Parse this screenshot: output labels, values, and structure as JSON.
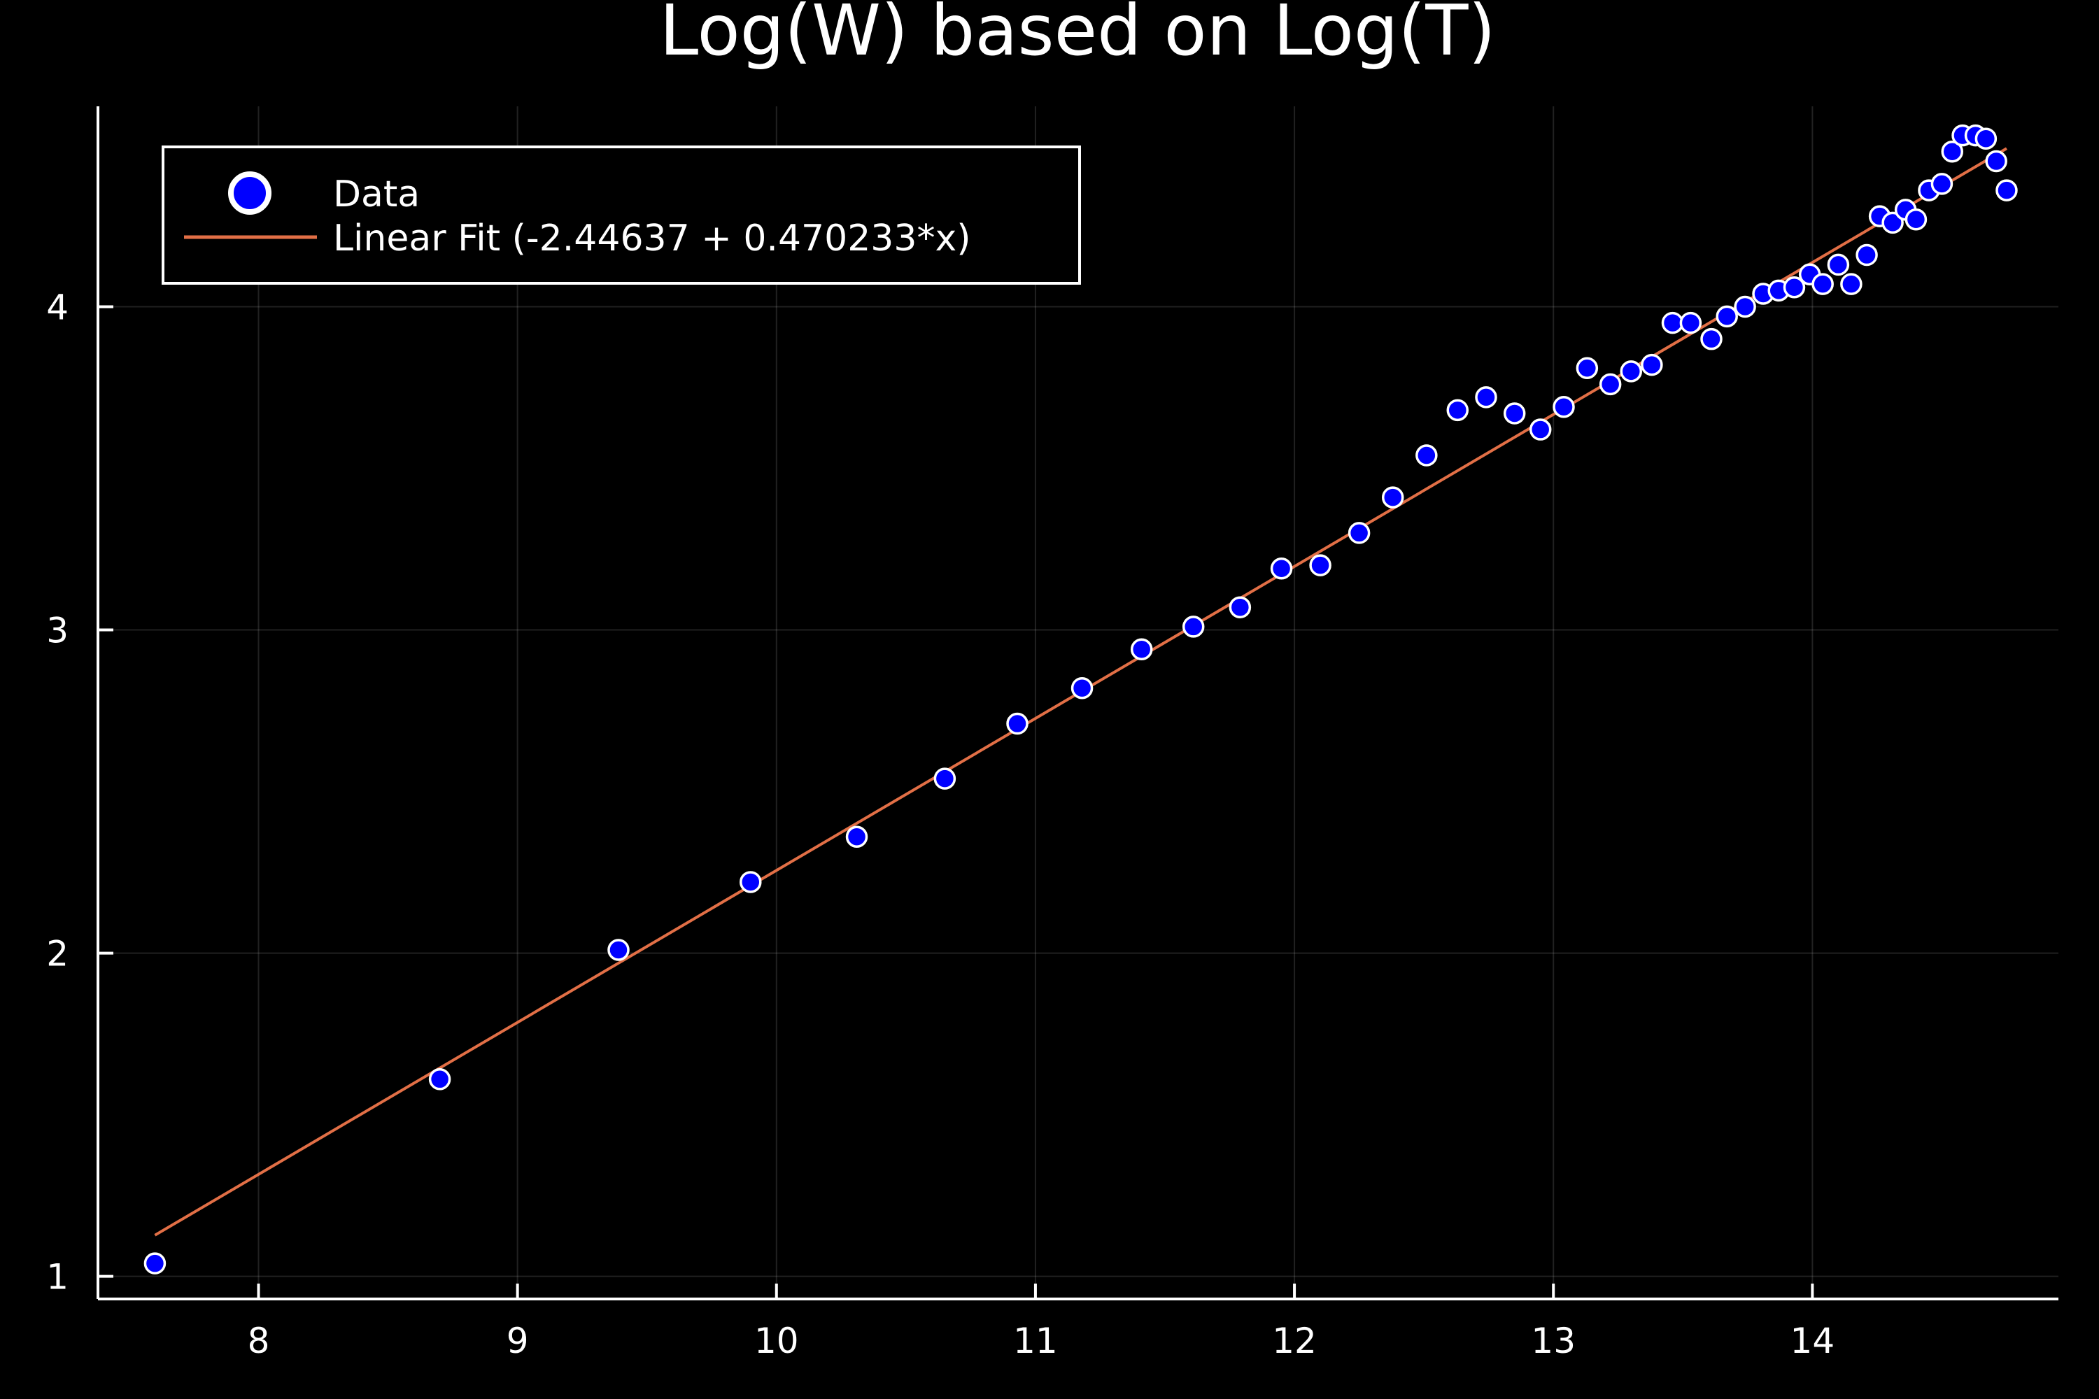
{
  "colors": {
    "background": "#000000",
    "foreground": "#ffffff",
    "data_points": "#0000ff",
    "data_point_outline": "#ffffff",
    "fit_line": "#e26f46"
  },
  "chart_data": {
    "type": "scatter",
    "title": "Log(W) based on Log(T)",
    "xlabel": "",
    "ylabel": "",
    "xlim": [
      7.38,
      14.95
    ],
    "ylim": [
      0.93,
      4.62
    ],
    "xticks": [
      8,
      9,
      10,
      11,
      12,
      13,
      14
    ],
    "yticks": [
      1,
      2,
      3,
      4
    ],
    "grid": true,
    "legend_position": "top-left",
    "series": [
      {
        "name": "Data",
        "kind": "scatter",
        "x": [
          7.6,
          8.7,
          9.39,
          9.9,
          10.31,
          10.65,
          10.93,
          11.18,
          11.41,
          11.61,
          11.79,
          11.95,
          12.1,
          12.25,
          12.38,
          12.51,
          12.63,
          12.74,
          12.85,
          12.95,
          13.04,
          13.13,
          13.22,
          13.3,
          13.38,
          13.46,
          13.53,
          13.61,
          13.67,
          13.74,
          13.81,
          13.87,
          13.93,
          13.99,
          14.04,
          14.1,
          14.15,
          14.21,
          14.26,
          14.31,
          14.36,
          14.4,
          14.45,
          14.5,
          14.54,
          14.58,
          14.63,
          14.67,
          14.71,
          14.75
        ],
        "y": [
          1.04,
          1.61,
          2.01,
          2.22,
          2.36,
          2.54,
          2.71,
          2.82,
          2.94,
          3.01,
          3.07,
          3.19,
          3.2,
          3.3,
          3.41,
          3.54,
          3.68,
          3.72,
          3.67,
          3.62,
          3.69,
          3.81,
          3.76,
          3.8,
          3.82,
          3.95,
          3.95,
          3.9,
          3.97,
          4.0,
          4.04,
          4.05,
          4.06,
          4.1,
          4.07,
          4.13,
          4.07,
          4.16,
          4.28,
          4.26,
          4.3,
          4.27,
          4.36,
          4.38,
          4.48,
          4.53,
          4.53,
          4.52,
          4.45,
          4.36
        ]
      },
      {
        "name": "Linear Fit (-2.44637 + 0.470233*x)",
        "kind": "line",
        "intercept": -2.44637,
        "slope": 0.470233,
        "x": [
          7.6,
          14.75
        ]
      }
    ]
  }
}
